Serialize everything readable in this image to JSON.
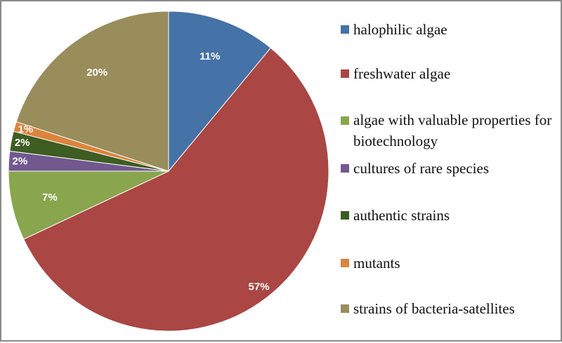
{
  "chart_data": {
    "type": "pie",
    "categories": [
      "halophilic algae",
      "freshwater algae",
      "algae with valuable properties for biotechnology",
      "cultures of rare species",
      "authentic strains",
      "mutants",
      "strains of bacteria-satellites"
    ],
    "values": [
      11,
      57,
      7,
      2,
      2,
      1,
      20
    ],
    "value_labels": [
      "11%",
      "57%",
      "7%",
      "2%",
      "2%",
      "1%",
      "20%"
    ],
    "colors": [
      "#4572a7",
      "#aa4643",
      "#89a54e",
      "#71588f",
      "#3d5d22",
      "#db843d",
      "#998d5c"
    ],
    "legend": "right"
  }
}
